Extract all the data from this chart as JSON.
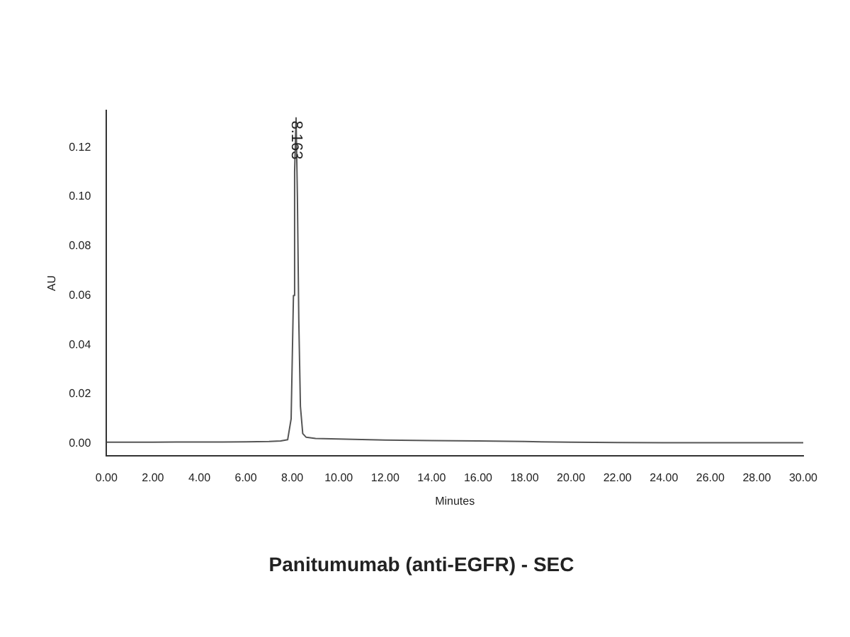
{
  "chart_data": {
    "type": "line",
    "title": "Panitumumab (anti-EGFR) - SEC",
    "xlabel": "Minutes",
    "ylabel": "AU",
    "series": [
      {
        "color": "#555555",
        "x": [
          0,
          1,
          2,
          3,
          4,
          5,
          6,
          7,
          7.5,
          7.8,
          7.95,
          8.05,
          8.1,
          8.163,
          8.22,
          8.28,
          8.35,
          8.45,
          8.6,
          9,
          10,
          11,
          12,
          14,
          16,
          18,
          20,
          22,
          24,
          26,
          28,
          30
        ],
        "values": [
          0.0005,
          0.0005,
          0.0005,
          0.0006,
          0.0006,
          0.0006,
          0.0007,
          0.0008,
          0.001,
          0.0015,
          0.01,
          0.06,
          0.11,
          0.132,
          0.1,
          0.05,
          0.015,
          0.004,
          0.0025,
          0.002,
          0.0018,
          0.0016,
          0.0014,
          0.0012,
          0.001,
          0.0008,
          0.0005,
          0.0004,
          0.0003,
          0.0003,
          0.0003,
          0.0003
        ]
      }
    ],
    "xlim": [
      0,
      30
    ],
    "xticks": [
      {
        "value": 0,
        "label": "0.00"
      },
      {
        "value": 2,
        "label": "2.00"
      },
      {
        "value": 4,
        "label": "4.00"
      },
      {
        "value": 6,
        "label": "6.00"
      },
      {
        "value": 8,
        "label": "8.00"
      },
      {
        "value": 10,
        "label": "10.00"
      },
      {
        "value": 12,
        "label": "12.00"
      },
      {
        "value": 14,
        "label": "14.00"
      },
      {
        "value": 16,
        "label": "16.00"
      },
      {
        "value": 18,
        "label": "18.00"
      },
      {
        "value": 20,
        "label": "20.00"
      },
      {
        "value": 22,
        "label": "22.00"
      },
      {
        "value": 24,
        "label": "24.00"
      },
      {
        "value": 26,
        "label": "26.00"
      },
      {
        "value": 28,
        "label": "28.00"
      },
      {
        "value": 30,
        "label": "30.00"
      }
    ],
    "ylim": [
      -0.005,
      0.135
    ],
    "yticks": [
      {
        "value": 0,
        "label": "0.00"
      },
      {
        "value": 0.02,
        "label": "0.02"
      },
      {
        "value": 0.04,
        "label": "0.04"
      },
      {
        "value": 0.06,
        "label": "0.06"
      },
      {
        "value": 0.08,
        "label": "0.08"
      },
      {
        "value": 0.1,
        "label": "0.10"
      },
      {
        "value": 0.12,
        "label": "0.12"
      }
    ],
    "annotations": [
      {
        "text": "8.163",
        "x": 8.163,
        "y": 0.132
      }
    ],
    "grid": false,
    "legend": false,
    "marker": "none",
    "line_style": "solid"
  }
}
